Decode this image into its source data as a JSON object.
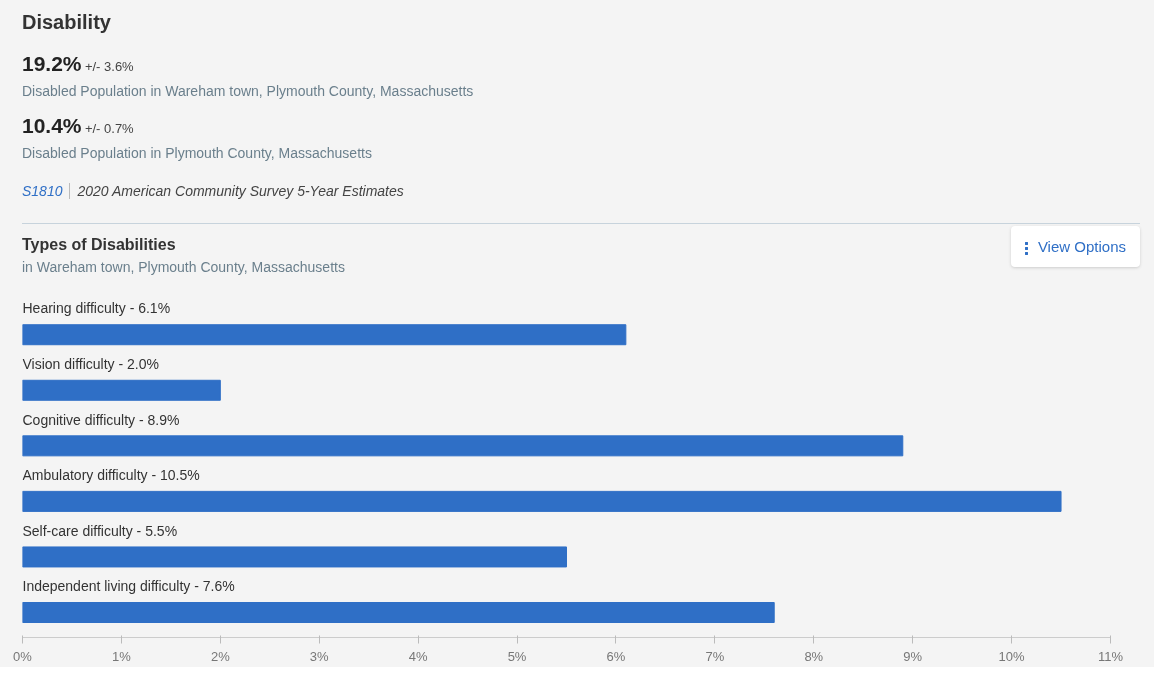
{
  "chart_data": {
    "type": "bar",
    "orientation": "horizontal",
    "title": "Disability",
    "subtitle": "Types of Disabilities",
    "annotations": [
      "19.2%",
      "+/- 3.6%",
      "Disabled Population in Wareham town, Plymouth County, Massachusetts",
      "10.4%",
      "+/- 0.7%",
      "Disabled Population in Plymouth County, Massachusetts",
      "S1810",
      "2020 American Community Survey 5-Year Estimates",
      "in Wareham town, Plymouth County, Massachusetts",
      "View Options"
    ],
    "categories": [
      "Hearing difficulty - 6.1%",
      "Vision difficulty - 2.0%",
      "Cognitive difficulty - 8.9%",
      "Ambulatory difficulty - 10.5%",
      "Self-care difficulty - 5.5%",
      "Independent living difficulty - 7.6%"
    ],
    "values": [
      6.1,
      2.0,
      8.9,
      10.5,
      5.5,
      7.6
    ],
    "color": "#2f6fc6",
    "xlim": [
      0,
      11
    ],
    "xticks": [
      {
        "value": 0,
        "label": "0%"
      },
      {
        "value": 1,
        "label": "1%"
      },
      {
        "value": 2,
        "label": "2%"
      },
      {
        "value": 3,
        "label": "3%"
      },
      {
        "value": 4,
        "label": "4%"
      },
      {
        "value": 5,
        "label": "5%"
      },
      {
        "value": 6,
        "label": "6%"
      },
      {
        "value": 7,
        "label": "7%"
      },
      {
        "value": 8,
        "label": "8%"
      },
      {
        "value": 9,
        "label": "9%"
      },
      {
        "value": 10,
        "label": "10%"
      },
      {
        "value": 11,
        "label": "11%"
      }
    ],
    "grid": false
  }
}
